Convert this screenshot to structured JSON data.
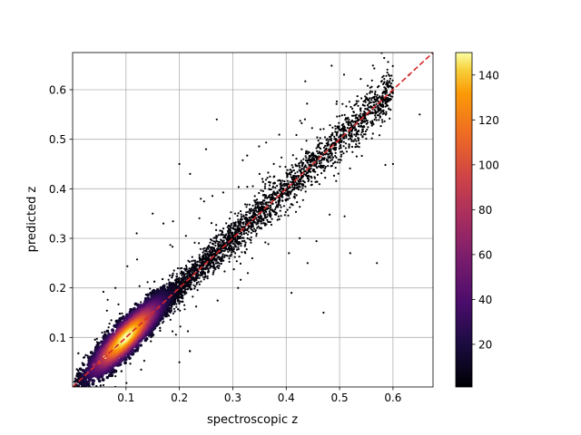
{
  "chart_data": {
    "type": "scatter",
    "subtype": "density-colored scatter (hexbin-like)",
    "title": "",
    "xlabel": "spectroscopic z",
    "ylabel": "predicted z",
    "xlim": [
      0.0,
      0.675
    ],
    "ylim": [
      0.0,
      0.675
    ],
    "xticks": [
      0.1,
      0.2,
      0.3,
      0.4,
      0.5,
      0.6
    ],
    "yticks": [
      0.1,
      0.2,
      0.3,
      0.4,
      0.5,
      0.6
    ],
    "xtick_labels": [
      "0.1",
      "0.2",
      "0.3",
      "0.4",
      "0.5",
      "0.6"
    ],
    "ytick_labels": [
      "0.1",
      "0.2",
      "0.3",
      "0.4",
      "0.5",
      "0.6"
    ],
    "grid": true,
    "reference_line": {
      "x": [
        0.0,
        0.675
      ],
      "y": [
        0.0,
        0.675
      ],
      "color": "#d62728",
      "style": "dashed"
    },
    "colormap": "inferno",
    "colorbar": {
      "range": [
        1,
        150
      ],
      "ticks": [
        20,
        40,
        60,
        80,
        100,
        120,
        140
      ],
      "tick_labels": [
        "20",
        "40",
        "60",
        "80",
        "100",
        "120",
        "140"
      ]
    },
    "points": [
      [
        0.06,
        0.06,
        150
      ],
      [
        0.08,
        0.08,
        148
      ],
      [
        0.1,
        0.1,
        140
      ],
      [
        0.12,
        0.115,
        130
      ],
      [
        0.07,
        0.075,
        120
      ],
      [
        0.09,
        0.095,
        145
      ],
      [
        0.11,
        0.105,
        125
      ],
      [
        0.13,
        0.13,
        110
      ],
      [
        0.05,
        0.05,
        100
      ],
      [
        0.14,
        0.14,
        85
      ],
      [
        0.04,
        0.045,
        75
      ],
      [
        0.15,
        0.15,
        70
      ],
      [
        0.16,
        0.16,
        55
      ],
      [
        0.03,
        0.03,
        50
      ],
      [
        0.17,
        0.17,
        40
      ],
      [
        0.18,
        0.18,
        30
      ],
      [
        0.02,
        0.025,
        25
      ],
      [
        0.19,
        0.19,
        18
      ],
      [
        0.2,
        0.2,
        12
      ],
      [
        0.21,
        0.22,
        10
      ],
      [
        0.22,
        0.22,
        9
      ],
      [
        0.24,
        0.24,
        7
      ],
      [
        0.26,
        0.26,
        6
      ],
      [
        0.28,
        0.28,
        5
      ],
      [
        0.3,
        0.3,
        5
      ],
      [
        0.32,
        0.32,
        4
      ],
      [
        0.34,
        0.34,
        4
      ],
      [
        0.36,
        0.36,
        3
      ],
      [
        0.38,
        0.38,
        3
      ],
      [
        0.4,
        0.4,
        3
      ],
      [
        0.42,
        0.42,
        2
      ],
      [
        0.44,
        0.44,
        2
      ],
      [
        0.46,
        0.46,
        2
      ],
      [
        0.48,
        0.48,
        1
      ],
      [
        0.5,
        0.5,
        1
      ],
      [
        0.52,
        0.52,
        1
      ],
      [
        0.55,
        0.55,
        1
      ],
      [
        0.58,
        0.58,
        1
      ],
      [
        0.6,
        0.6,
        1
      ],
      [
        0.63,
        0.63,
        1
      ],
      [
        0.27,
        0.54,
        1
      ],
      [
        0.2,
        0.45,
        1
      ],
      [
        0.22,
        0.43,
        1
      ],
      [
        0.25,
        0.48,
        1
      ],
      [
        0.57,
        0.25,
        1
      ],
      [
        0.47,
        0.15,
        1
      ],
      [
        0.41,
        0.19,
        1
      ],
      [
        0.31,
        0.2,
        1
      ],
      [
        0.08,
        0.2,
        1
      ],
      [
        0.2,
        0.05,
        1
      ],
      [
        0.08,
        0.0,
        1
      ],
      [
        0.65,
        0.55,
        1
      ],
      [
        0.6,
        0.45,
        1
      ],
      [
        0.52,
        0.27,
        1
      ],
      [
        0.44,
        0.25,
        1
      ],
      [
        0.35,
        0.43,
        1
      ],
      [
        0.15,
        0.35,
        1
      ],
      [
        0.12,
        0.31,
        1
      ],
      [
        0.17,
        0.33,
        1
      ],
      [
        0.24,
        0.38,
        1
      ]
    ],
    "scatter_model": {
      "core": {
        "x_mean": 0.105,
        "x_sd": 0.04,
        "x_min": 0.0,
        "x_max": 0.2,
        "y_sd": 0.018,
        "n": 5200
      },
      "tail": {
        "x_min": 0.15,
        "x_max": 0.6,
        "y_sd_scale": 0.06,
        "n": 3000
      },
      "outliers": {
        "n": 220
      }
    }
  }
}
